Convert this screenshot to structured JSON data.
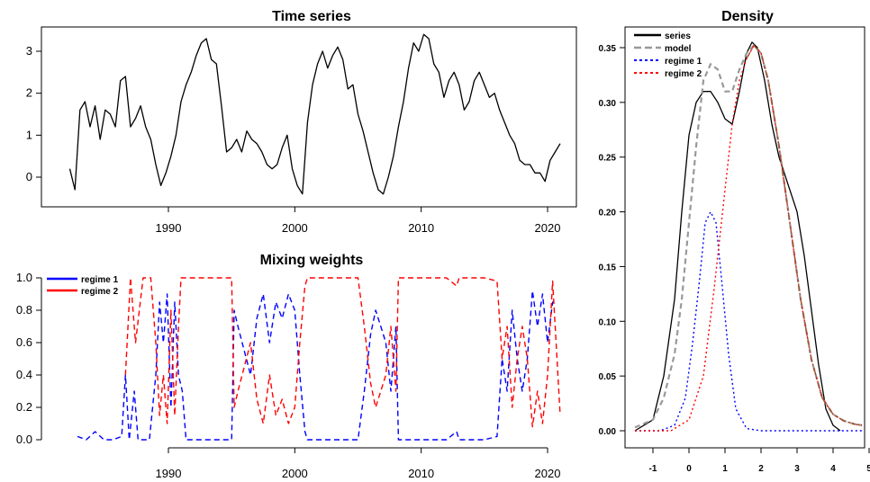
{
  "chart_data": [
    {
      "type": "line",
      "title": "Time series",
      "xlim": [
        1982,
        2021
      ],
      "ylim": [
        -0.5,
        3.5
      ],
      "xticks": [
        "1990",
        "2000",
        "2010",
        "2020"
      ],
      "yticks": [
        "0",
        "1",
        "2",
        "3"
      ],
      "series": [
        {
          "color": "#000000",
          "style": "solid",
          "x": [
            1982.2,
            1982.6,
            1983.0,
            1983.4,
            1983.8,
            1984.2,
            1984.6,
            1985.0,
            1985.4,
            1985.8,
            1986.2,
            1986.6,
            1987.0,
            1987.4,
            1987.8,
            1988.2,
            1988.6,
            1989.0,
            1989.4,
            1989.8,
            1990.2,
            1990.6,
            1991.0,
            1991.4,
            1991.8,
            1992.2,
            1992.6,
            1993.0,
            1993.4,
            1993.8,
            1994.2,
            1994.6,
            1995.0,
            1995.4,
            1995.8,
            1996.2,
            1996.6,
            1997.0,
            1997.4,
            1997.8,
            1998.2,
            1998.6,
            1999.0,
            1999.4,
            1999.8,
            2000.2,
            2000.6,
            2001.0,
            2001.4,
            2001.8,
            2002.2,
            2002.6,
            2003.0,
            2003.4,
            2003.8,
            2004.2,
            2004.6,
            2005.0,
            2005.4,
            2005.8,
            2006.2,
            2006.6,
            2007.0,
            2007.4,
            2007.8,
            2008.2,
            2008.6,
            2009.0,
            2009.4,
            2009.8,
            2010.2,
            2010.6,
            2011.0,
            2011.4,
            2011.8,
            2012.2,
            2012.6,
            2013.0,
            2013.4,
            2013.8,
            2014.2,
            2014.6,
            2015.0,
            2015.4,
            2015.8,
            2016.2,
            2016.6,
            2017.0,
            2017.4,
            2017.8,
            2018.2,
            2018.6,
            2019.0,
            2019.4,
            2019.8,
            2020.2,
            2020.6,
            2021.0
          ],
          "y": [
            0.2,
            -0.3,
            1.6,
            1.8,
            1.2,
            1.7,
            0.9,
            1.6,
            1.5,
            1.2,
            2.3,
            2.4,
            1.2,
            1.4,
            1.7,
            1.2,
            0.9,
            0.3,
            -0.2,
            0.1,
            0.5,
            1.0,
            1.8,
            2.2,
            2.5,
            2.9,
            3.2,
            3.3,
            2.8,
            2.7,
            1.7,
            0.6,
            0.7,
            0.9,
            0.6,
            1.1,
            0.9,
            0.8,
            0.6,
            0.3,
            0.2,
            0.3,
            0.7,
            1.0,
            0.2,
            -0.2,
            -0.4,
            1.3,
            2.2,
            2.7,
            3.0,
            2.6,
            2.9,
            3.1,
            2.8,
            2.1,
            2.2,
            1.5,
            1.1,
            0.6,
            0.1,
            -0.3,
            -0.4,
            0.0,
            0.5,
            1.2,
            1.8,
            2.6,
            3.2,
            3.0,
            3.4,
            3.3,
            2.7,
            2.5,
            1.9,
            2.3,
            2.5,
            2.2,
            1.6,
            1.8,
            2.3,
            2.5,
            2.2,
            1.9,
            2.0,
            1.6,
            1.3,
            1.0,
            0.8,
            0.4,
            0.3,
            0.3,
            0.1,
            0.1,
            -0.1,
            0.4,
            0.6,
            0.8
          ]
        }
      ]
    },
    {
      "type": "line",
      "title": "Mixing weights",
      "xlim": [
        1982,
        2021
      ],
      "ylim": [
        0,
        1
      ],
      "xticks": [
        "1990",
        "2000",
        "2010",
        "2020"
      ],
      "yticks": [
        "0.0",
        "0.2",
        "0.4",
        "0.6",
        "0.8",
        "1.0"
      ],
      "legend_position": "top-left",
      "series": [
        {
          "name": "regime 1",
          "color": "#0000ff",
          "style": "dashed",
          "x": [
            1982.8,
            1983.5,
            1984.2,
            1984.9,
            1985.6,
            1986.3,
            1986.6,
            1986.9,
            1987.3,
            1987.6,
            1988.0,
            1988.5,
            1989.0,
            1989.3,
            1989.6,
            1989.9,
            1990.2,
            1990.5,
            1990.8,
            1991.1,
            1991.4,
            1992.0,
            1993.0,
            1994.0,
            1995.0,
            1995.2,
            1995.5,
            1996.0,
            1996.5,
            1997.0,
            1997.5,
            1998.0,
            1998.5,
            1999.0,
            1999.5,
            2000.0,
            2000.4,
            2000.8,
            2001.0,
            2002.0,
            2003.0,
            2004.0,
            2005.0,
            2005.5,
            2006.0,
            2006.4,
            2006.8,
            2007.2,
            2007.6,
            2008.0,
            2008.2,
            2008.6,
            2009.0,
            2010.0,
            2011.0,
            2012.0,
            2012.8,
            2013.0,
            2014.0,
            2015.0,
            2016.0,
            2016.4,
            2016.8,
            2017.2,
            2017.6,
            2018.0,
            2018.4,
            2018.8,
            2019.2,
            2019.6,
            2020.0,
            2020.4,
            2020.8
          ],
          "y": [
            0.02,
            0.0,
            0.05,
            0.0,
            0.0,
            0.02,
            0.4,
            0.0,
            0.3,
            0.0,
            0.0,
            0.0,
            0.4,
            0.85,
            0.6,
            0.9,
            0.2,
            0.85,
            0.4,
            0.3,
            0.0,
            0.0,
            0.0,
            0.0,
            0.0,
            0.8,
            0.7,
            0.55,
            0.4,
            0.75,
            0.9,
            0.6,
            0.85,
            0.75,
            0.9,
            0.8,
            0.4,
            0.05,
            0.0,
            0.0,
            0.0,
            0.0,
            0.0,
            0.3,
            0.65,
            0.8,
            0.7,
            0.6,
            0.3,
            0.7,
            0.0,
            0.0,
            0.0,
            0.0,
            0.0,
            0.0,
            0.05,
            0.0,
            0.0,
            0.0,
            0.02,
            0.5,
            0.3,
            0.8,
            0.5,
            0.3,
            0.5,
            0.92,
            0.7,
            0.9,
            0.6,
            0.85,
            0.85
          ]
        },
        {
          "name": "regime 2",
          "color": "#ff0000",
          "style": "dashed",
          "x": [
            1986.6,
            1987.0,
            1987.4,
            1988.0,
            1988.6,
            1989.0,
            1989.3,
            1989.6,
            1989.9,
            1990.2,
            1990.5,
            1990.8,
            1991.0,
            1991.4,
            1992.0,
            1993.0,
            1994.0,
            1995.0,
            1995.2,
            1995.5,
            1996.0,
            1996.5,
            1997.0,
            1997.5,
            1998.0,
            1998.5,
            1999.0,
            1999.5,
            2000.0,
            2000.4,
            2000.8,
            2001.0,
            2002.0,
            2003.0,
            2004.0,
            2005.0,
            2005.5,
            2006.0,
            2006.4,
            2006.8,
            2007.2,
            2007.6,
            2008.0,
            2008.2,
            2008.6,
            2009.0,
            2010.0,
            2011.0,
            2012.0,
            2012.8,
            2013.0,
            2014.0,
            2015.0,
            2016.0,
            2016.4,
            2016.8,
            2017.2,
            2017.6,
            2018.0,
            2018.4,
            2018.8,
            2019.2,
            2019.6,
            2020.0,
            2020.4,
            2021.0
          ],
          "y": [
            0.4,
            1.0,
            0.6,
            1.0,
            1.0,
            0.6,
            0.15,
            0.4,
            0.1,
            0.8,
            0.15,
            0.7,
            1.0,
            1.0,
            1.0,
            1.0,
            1.0,
            1.0,
            0.2,
            0.3,
            0.45,
            0.6,
            0.25,
            0.1,
            0.4,
            0.15,
            0.25,
            0.1,
            0.2,
            0.6,
            0.95,
            1.0,
            1.0,
            1.0,
            1.0,
            1.0,
            0.7,
            0.35,
            0.2,
            0.3,
            0.4,
            0.7,
            0.3,
            1.0,
            1.0,
            1.0,
            1.0,
            1.0,
            1.0,
            0.95,
            1.0,
            1.0,
            1.0,
            0.98,
            0.5,
            0.7,
            0.2,
            0.5,
            0.7,
            0.5,
            0.08,
            0.3,
            0.1,
            0.4,
            0.98,
            0.15
          ]
        }
      ]
    },
    {
      "type": "line",
      "title": "Density",
      "xlim": [
        -1.5,
        5
      ],
      "ylim": [
        0,
        0.36
      ],
      "xticks": [
        "-1",
        "0",
        "1",
        "2",
        "3",
        "4",
        "5"
      ],
      "yticks": [
        "0.00",
        "0.05",
        "0.10",
        "0.15",
        "0.20",
        "0.25",
        "0.30",
        "0.35"
      ],
      "legend_position": "top-left",
      "series": [
        {
          "name": "series",
          "color": "#000000",
          "style": "solid",
          "x": [
            -1.5,
            -1.0,
            -0.7,
            -0.4,
            -0.2,
            0.0,
            0.2,
            0.4,
            0.6,
            0.8,
            1.0,
            1.2,
            1.4,
            1.6,
            1.75,
            1.9,
            2.1,
            2.3,
            2.5,
            2.8,
            3.0,
            3.2,
            3.4,
            3.6,
            3.8,
            4.0,
            4.2
          ],
          "y": [
            0.0,
            0.01,
            0.05,
            0.12,
            0.2,
            0.27,
            0.3,
            0.31,
            0.31,
            0.3,
            0.285,
            0.28,
            0.31,
            0.345,
            0.355,
            0.35,
            0.32,
            0.28,
            0.25,
            0.22,
            0.2,
            0.16,
            0.11,
            0.06,
            0.02,
            0.005,
            0.0
          ]
        },
        {
          "name": "model",
          "color": "#999999",
          "style": "dashed",
          "x": [
            -1.5,
            -1.0,
            -0.7,
            -0.4,
            -0.2,
            0.0,
            0.2,
            0.4,
            0.6,
            0.8,
            1.0,
            1.2,
            1.4,
            1.6,
            1.8,
            2.0,
            2.2,
            2.5,
            2.8,
            3.1,
            3.4,
            3.7,
            4.0,
            4.3,
            4.6,
            4.8
          ],
          "y": [
            0.003,
            0.01,
            0.03,
            0.07,
            0.12,
            0.19,
            0.26,
            0.32,
            0.335,
            0.33,
            0.31,
            0.31,
            0.33,
            0.345,
            0.352,
            0.345,
            0.32,
            0.26,
            0.19,
            0.12,
            0.065,
            0.03,
            0.015,
            0.009,
            0.006,
            0.005
          ]
        },
        {
          "name": "regime 1",
          "color": "#0000ff",
          "style": "dotted",
          "x": [
            -1.5,
            -0.8,
            -0.4,
            -0.1,
            0.1,
            0.3,
            0.45,
            0.6,
            0.75,
            0.9,
            1.1,
            1.3,
            1.6,
            2.0,
            3.0,
            4.0,
            4.8
          ],
          "y": [
            0.0,
            0.0,
            0.005,
            0.03,
            0.08,
            0.14,
            0.19,
            0.2,
            0.19,
            0.14,
            0.07,
            0.02,
            0.002,
            0.0,
            0.0,
            0.0,
            0.0
          ]
        },
        {
          "name": "regime 2",
          "color": "#ff0000",
          "style": "dotted",
          "x": [
            -1.5,
            -0.5,
            0.0,
            0.4,
            0.7,
            1.0,
            1.2,
            1.4,
            1.6,
            1.8,
            2.0,
            2.2,
            2.5,
            2.8,
            3.1,
            3.4,
            3.7,
            4.0,
            4.3,
            4.6,
            4.8
          ],
          "y": [
            0.0,
            0.0,
            0.01,
            0.05,
            0.13,
            0.22,
            0.28,
            0.32,
            0.34,
            0.352,
            0.345,
            0.32,
            0.26,
            0.19,
            0.12,
            0.065,
            0.03,
            0.015,
            0.009,
            0.006,
            0.005
          ]
        },
        {
          "color": "#a0522d",
          "style": "dashdot",
          "x": [
            1.6,
            1.8,
            2.0,
            2.2,
            2.5,
            2.8,
            3.1,
            3.4,
            3.7,
            4.0,
            4.3,
            4.6,
            4.8
          ],
          "y": [
            0.34,
            0.352,
            0.345,
            0.32,
            0.26,
            0.19,
            0.12,
            0.065,
            0.03,
            0.015,
            0.009,
            0.006,
            0.005
          ]
        }
      ]
    }
  ]
}
